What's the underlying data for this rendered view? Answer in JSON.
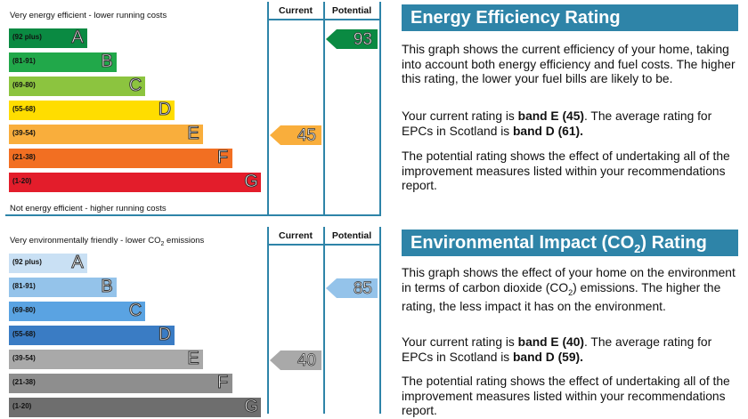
{
  "energy": {
    "top_caption": "Very energy efficient - lower running costs",
    "bottom_caption": "Not energy efficient - higher running costs",
    "current_header": "Current",
    "potential_header": "Potential",
    "bands": [
      {
        "range": "(92 plus)",
        "letter": "A",
        "color": "#0a8a42"
      },
      {
        "range": "(81-91)",
        "letter": "B",
        "color": "#21a84a"
      },
      {
        "range": "(69-80)",
        "letter": "C",
        "color": "#8cc43f"
      },
      {
        "range": "(55-68)",
        "letter": "D",
        "color": "#ffdd00"
      },
      {
        "range": "(39-54)",
        "letter": "E",
        "color": "#f9ae3c"
      },
      {
        "range": "(21-38)",
        "letter": "F",
        "color": "#f26f22"
      },
      {
        "range": "(1-20)",
        "letter": "G",
        "color": "#e31d2b"
      }
    ],
    "current": {
      "value": "45",
      "band_index": 4,
      "color": "#f9ae3c"
    },
    "potential": {
      "value": "93",
      "band_index": 0,
      "color": "#0a8a42"
    }
  },
  "environment": {
    "top_caption_prefix": "Very environmentally friendly - lower CO",
    "top_caption_sub": "2",
    "top_caption_suffix": " emissions",
    "current_header": "Current",
    "potential_header": "Potential",
    "bands": [
      {
        "range": "(92 plus)",
        "letter": "A",
        "color": "#c9e0f4"
      },
      {
        "range": "(81-91)",
        "letter": "B",
        "color": "#94c3ea"
      },
      {
        "range": "(69-80)",
        "letter": "C",
        "color": "#5aa3e2"
      },
      {
        "range": "(55-68)",
        "letter": "D",
        "color": "#3a7cc4"
      },
      {
        "range": "(39-54)",
        "letter": "E",
        "color": "#a9a9a9"
      },
      {
        "range": "(21-38)",
        "letter": "F",
        "color": "#8e8e8e"
      },
      {
        "range": "(1-20)",
        "letter": "G",
        "color": "#6e6e6e"
      }
    ],
    "current": {
      "value": "40",
      "band_index": 4,
      "color": "#a9a9a9"
    },
    "potential": {
      "value": "85",
      "band_index": 1,
      "color": "#94c3ea"
    }
  },
  "ee_panel": {
    "title": "Energy Efficiency Rating",
    "p1": "This graph shows the current efficiency of your home, taking into account both energy efficiency and fuel costs. The higher this rating, the lower your fuel bills are likely to be.",
    "p2_a": "Your current rating is ",
    "p2_b": "band E (45)",
    "p2_c": ". The average rating for EPCs in Scotland is ",
    "p2_d": "band D (61).",
    "p3": "The potential rating shows the effect of undertaking all of the improvement measures listed within your recommendations report."
  },
  "ei_panel": {
    "title_a": "Environmental Impact (CO",
    "title_sub": "2",
    "title_b": ") Rating",
    "p1_a": "This graph shows the effect of your home on the environment in terms of carbon dioxide (CO",
    "p1_sub": "2",
    "p1_b": ") emissions. The higher the rating, the less impact it has on the environment.",
    "p2_a": "Your current rating is ",
    "p2_b": "band E (40)",
    "p2_c": ". The average rating for EPCs in Scotland is ",
    "p2_d": "band D (59).",
    "p3": "The potential rating shows the effect of undertaking all of the improvement measures listed within your recommendations report."
  }
}
